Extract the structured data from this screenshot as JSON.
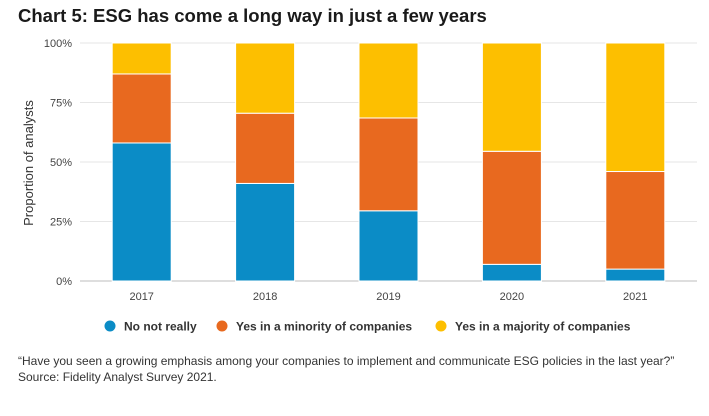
{
  "chart_data": {
    "type": "bar",
    "stacked": true,
    "title": "Chart 5: ESG has come a long way in just a few years",
    "ylabel": "Proportion of analysts",
    "xlabel": "",
    "ylim": [
      0,
      100
    ],
    "yticks": [
      "0%",
      "25%",
      "50%",
      "75%",
      "100%"
    ],
    "ytick_values": [
      0,
      25,
      50,
      75,
      100
    ],
    "grid": true,
    "legend_position": "bottom",
    "categories": [
      "2017",
      "2018",
      "2019",
      "2020",
      "2021"
    ],
    "series": [
      {
        "name": "No not really",
        "color": "#0b8cc6",
        "values": [
          58,
          41,
          29.5,
          7,
          5
        ]
      },
      {
        "name": "Yes in a minority of companies",
        "color": "#e8691f",
        "values": [
          29,
          29.5,
          39,
          47.5,
          41
        ]
      },
      {
        "name": "Yes in a majority of companies",
        "color": "#fdbf00",
        "values": [
          13,
          29.5,
          31.5,
          45.5,
          54
        ]
      }
    ]
  },
  "notes": {
    "question": "“Have you seen a growing emphasis among your companies to implement and communicate ESG policies in the last year?”",
    "source": "Source: Fidelity Analyst Survey 2021."
  }
}
